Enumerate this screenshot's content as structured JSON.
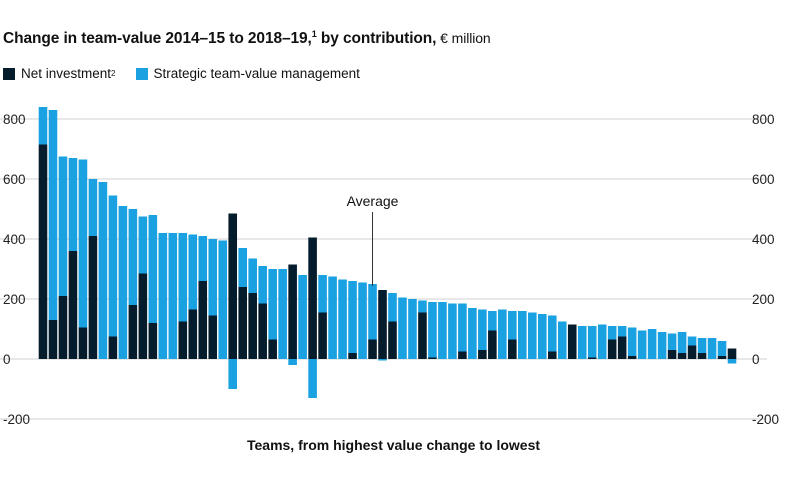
{
  "title": {
    "main": "Change in team-value 2014–15 to 2018–19,",
    "sup": "1",
    "suffix": " by contribution,",
    "unit": " € million"
  },
  "legend": [
    {
      "label": "Net investment",
      "sup": "2",
      "color": "#051c2c"
    },
    {
      "label": "Strategic team-value management",
      "sup": "",
      "color": "#1aa1e2"
    }
  ],
  "chart_data": {
    "type": "bar",
    "stacked": true,
    "xlabel": "Teams, from highest value change to lowest",
    "ylim": [
      -200,
      800
    ],
    "yticks": [
      -200,
      0,
      200,
      400,
      600,
      800
    ],
    "right_axis_ticks": [
      -200,
      0,
      200,
      400,
      600,
      800
    ],
    "grid": true,
    "annotation": {
      "text": "Average",
      "bar_index": 33
    },
    "series": [
      {
        "name": "Net investment",
        "color": "#051c2c",
        "values": [
          715,
          130,
          210,
          360,
          105,
          410,
          0,
          75,
          0,
          180,
          285,
          120,
          0,
          0,
          125,
          165,
          260,
          145,
          0,
          485,
          240,
          220,
          185,
          65,
          0,
          315,
          0,
          405,
          155,
          0,
          0,
          20,
          0,
          65,
          230,
          125,
          0,
          0,
          155,
          5,
          0,
          0,
          25,
          0,
          30,
          95,
          0,
          65,
          0,
          0,
          0,
          25,
          0,
          115,
          0,
          5,
          0,
          65,
          75,
          10,
          0,
          0,
          0,
          30,
          20,
          45,
          20,
          0,
          10,
          35
        ]
      },
      {
        "name": "Strategic team-value management",
        "color": "#1aa1e2",
        "values": [
          125,
          700,
          465,
          310,
          560,
          190,
          590,
          470,
          510,
          320,
          190,
          360,
          420,
          420,
          295,
          250,
          150,
          255,
          395,
          -100,
          130,
          115,
          125,
          235,
          300,
          -20,
          280,
          -130,
          125,
          275,
          265,
          240,
          255,
          185,
          -5,
          95,
          205,
          200,
          40,
          185,
          190,
          185,
          160,
          170,
          135,
          65,
          165,
          95,
          160,
          155,
          150,
          120,
          125,
          0,
          110,
          105,
          115,
          45,
          35,
          95,
          95,
          100,
          90,
          55,
          70,
          30,
          50,
          70,
          50,
          -15
        ]
      }
    ]
  }
}
